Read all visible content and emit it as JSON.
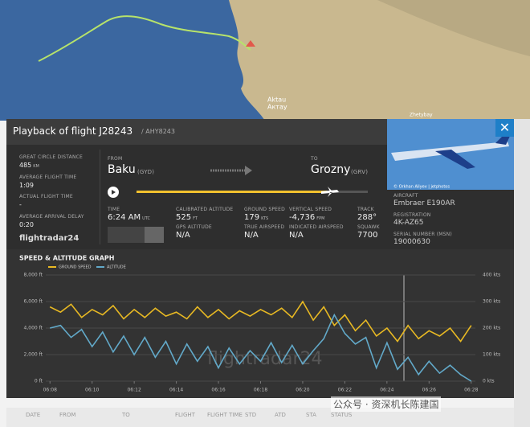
{
  "header": {
    "title": "Playback of flight J28243",
    "subtitle": "/ AHY8243"
  },
  "map": {
    "labels": [
      "Aktau",
      "Актау",
      "Zhetybay"
    ]
  },
  "stats": [
    {
      "label": "GREAT CIRCLE DISTANCE",
      "value": "485",
      "unit": "KM"
    },
    {
      "label": "AVERAGE FLIGHT TIME",
      "value": "1:09"
    },
    {
      "label": "ACTUAL FLIGHT TIME",
      "value": "-"
    },
    {
      "label": "AVERAGE ARRIVAL DELAY",
      "value": "0:20"
    }
  ],
  "logo": "flightradar24",
  "route": {
    "from_label": "FROM",
    "from": "Baku",
    "from_code": "(GYD)",
    "to_label": "TO",
    "to": "Grozny",
    "to_code": "(GRV)"
  },
  "live": [
    {
      "label": "TIME",
      "value": "6:24 AM",
      "unit": "UTC"
    },
    {
      "label": "CALIBRATED ALTITUDE",
      "value": "525",
      "unit": "FT"
    },
    {
      "label": "GROUND SPEED",
      "value": "179",
      "unit": "KTS"
    },
    {
      "label": "VERTICAL SPEED",
      "value": "-4,736",
      "unit": "FPM"
    },
    {
      "label": "TRACK",
      "value": "288°"
    },
    {
      "label": "GPS ALTITUDE",
      "value": "N/A"
    },
    {
      "label": "TRUE AIRSPEED",
      "value": "N/A"
    },
    {
      "label": "INDICATED AIRSPEED",
      "value": "N/A"
    },
    {
      "label": "SQUAWK",
      "value": "7700"
    }
  ],
  "aircraft": {
    "photo_credit": "© Orkhan Aliyev | jetphotos",
    "fields": [
      {
        "label": "AIRCRAFT",
        "value": "Embraer E190AR"
      },
      {
        "label": "REGISTRATION",
        "value": "4K-AZ65"
      },
      {
        "label": "SERIAL NUMBER (MSN)",
        "value": "19000630"
      }
    ]
  },
  "chart_data": {
    "type": "line",
    "title": "SPEED & ALTITUDE GRAPH",
    "watermark": "flightradar24",
    "x": [
      8,
      8.5,
      9,
      9.5,
      10,
      10.5,
      11,
      11.5,
      12,
      12.5,
      13,
      13.5,
      14,
      14.5,
      15,
      15.5,
      16,
      16.5,
      17,
      17.5,
      18,
      18.5,
      19,
      19.5,
      20,
      20.5,
      21,
      21.5,
      22,
      22.5,
      23,
      23.5,
      24,
      24.5,
      25,
      25.5,
      26,
      26.5,
      27,
      27.5,
      28
    ],
    "series": [
      {
        "name": "GROUND SPEED",
        "color": "#e8b923",
        "axis": "y2",
        "values": [
          280,
          260,
          290,
          240,
          270,
          250,
          285,
          235,
          270,
          240,
          275,
          245,
          260,
          235,
          280,
          240,
          270,
          235,
          265,
          245,
          270,
          250,
          275,
          240,
          300,
          230,
          280,
          210,
          250,
          190,
          230,
          170,
          200,
          150,
          210,
          160,
          190,
          170,
          200,
          150,
          210
        ]
      },
      {
        "name": "ALTITUDE",
        "color": "#62a9c9",
        "values": [
          4000,
          4200,
          3300,
          3900,
          2600,
          3700,
          2200,
          3400,
          2000,
          3300,
          1800,
          3000,
          1300,
          2800,
          1500,
          2600,
          1000,
          2500,
          1300,
          2300,
          1500,
          2900,
          1400,
          2700,
          1300,
          2300,
          3200,
          5000,
          3600,
          2800,
          3300,
          1000,
          2900,
          900,
          1800,
          500,
          1500,
          600,
          1200,
          500,
          0
        ]
      }
    ],
    "xlim": [
      7.8,
      28.2
    ],
    "xticks": [
      {
        "value": 8,
        "label": "06:08"
      },
      {
        "value": 10,
        "label": "06:10"
      },
      {
        "value": 12,
        "label": "06:12"
      },
      {
        "value": 14,
        "label": "06:14"
      },
      {
        "value": 16,
        "label": "06:16"
      },
      {
        "value": 18,
        "label": "06:18"
      },
      {
        "value": 20,
        "label": "06:20"
      },
      {
        "value": 22,
        "label": "06:22"
      },
      {
        "value": 24,
        "label": "06:24"
      },
      {
        "value": 26,
        "label": "06:26"
      },
      {
        "value": 28,
        "label": "06:28"
      }
    ],
    "ylim": [
      0,
      8000
    ],
    "yticks": [
      {
        "value": 0,
        "label": "0 ft"
      },
      {
        "value": 2000,
        "label": "2,000 ft"
      },
      {
        "value": 4000,
        "label": "4,000 ft"
      },
      {
        "value": 6000,
        "label": "6,000 ft"
      },
      {
        "value": 8000,
        "label": "8,000 ft"
      }
    ],
    "y2lim": [
      0,
      400
    ],
    "y2ticks": [
      {
        "value": 0,
        "label": "0 kts"
      },
      {
        "value": 100,
        "label": "100 kts"
      },
      {
        "value": 200,
        "label": "200 kts"
      },
      {
        "value": 300,
        "label": "300 kts"
      },
      {
        "value": 400,
        "label": "400 kts"
      }
    ],
    "grid": true
  },
  "table": {
    "columns": [
      "DATE",
      "FROM",
      "TO",
      "FLIGHT",
      "FLIGHT TIME",
      "STD",
      "ATD",
      "STA",
      "STATUS"
    ]
  },
  "overlay": "公众号 · 资深机长陈建国"
}
